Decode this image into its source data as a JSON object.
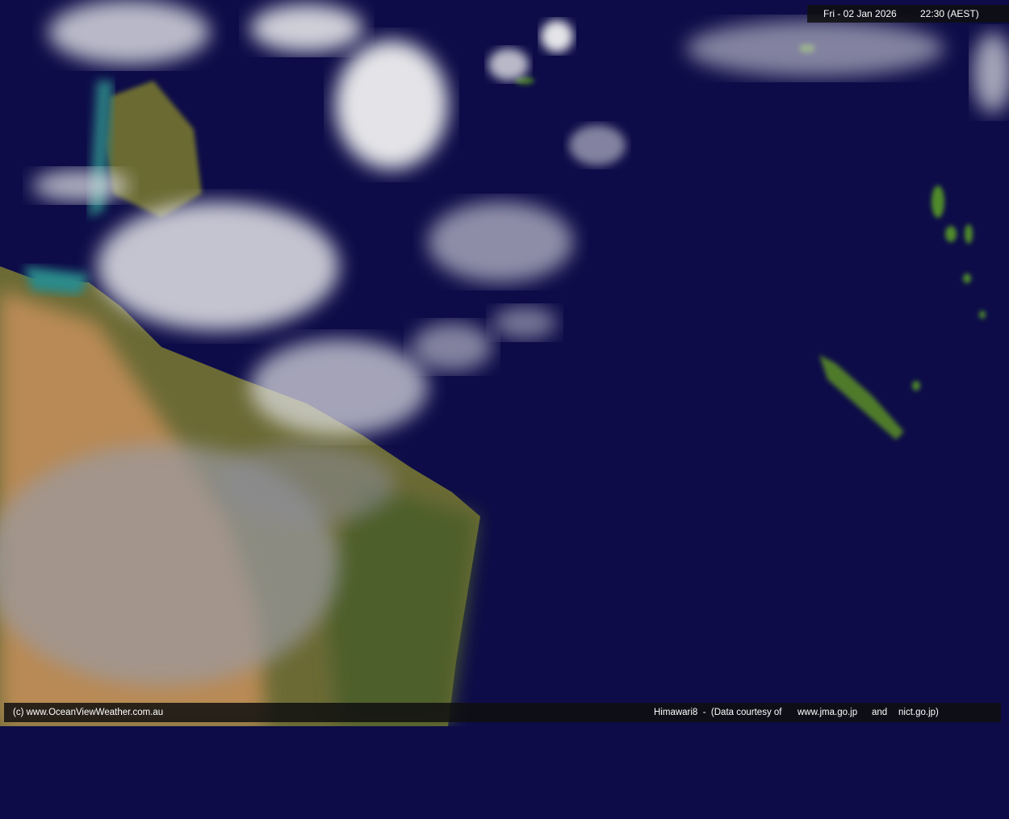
{
  "header": {
    "date": "Fri - 02 Jan 2026",
    "time": "22:30 (AEST)"
  },
  "footer": {
    "copyright": "(c) www.OceanViewWeather.com.au",
    "satellite": "Himawari8  -  (Data courtesy of",
    "source1": "www.jma.go.jp",
    "and": "and",
    "source2": "nict.go.jp)"
  },
  "colors": {
    "ocean": "#0d0c48",
    "land_green": "#5a6a2e",
    "land_desert": "#b98a55",
    "cloud": "#e8e8e8"
  }
}
